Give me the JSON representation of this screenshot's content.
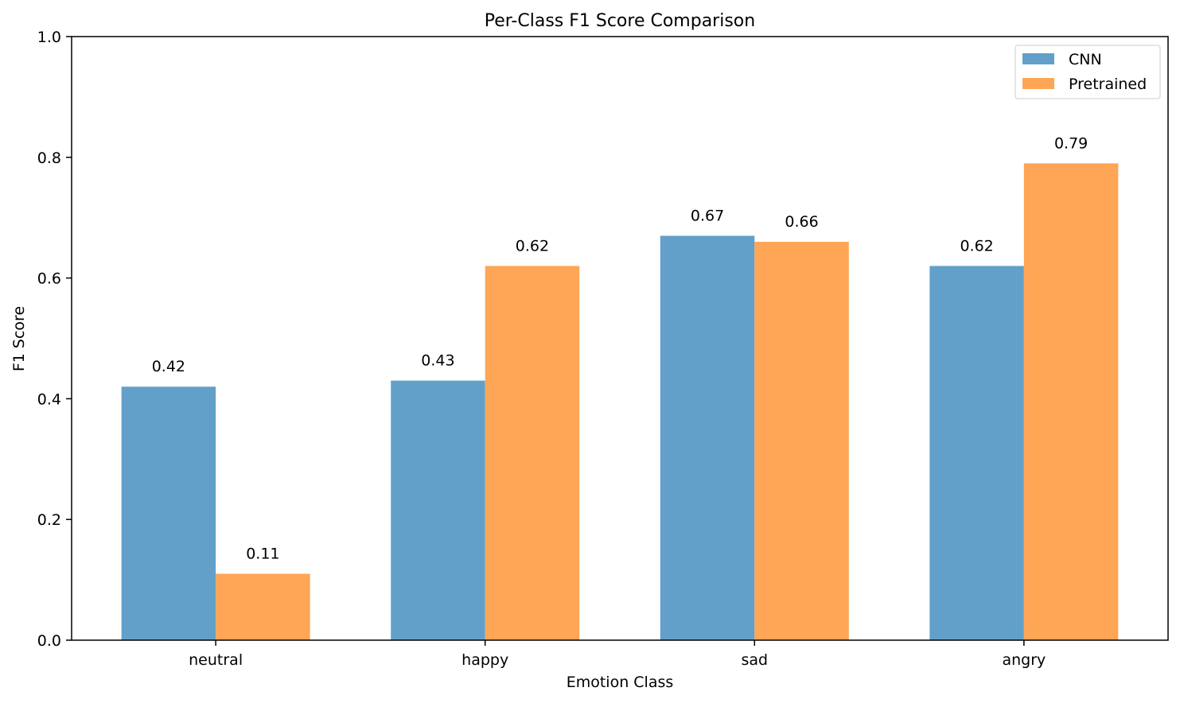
{
  "chart_data": {
    "type": "bar",
    "title": "Per-Class F1 Score Comparison",
    "xlabel": "Emotion Class",
    "ylabel": "F1 Score",
    "categories": [
      "neutral",
      "happy",
      "sad",
      "angry"
    ],
    "series": [
      {
        "name": "CNN",
        "values": [
          0.42,
          0.43,
          0.67,
          0.62
        ],
        "color": "#62a0ca"
      },
      {
        "name": "Pretrained",
        "values": [
          0.11,
          0.62,
          0.66,
          0.79
        ],
        "color": "#ffa556"
      }
    ],
    "data_labels": [
      [
        "0.42",
        "0.43",
        "0.67",
        "0.62"
      ],
      [
        "0.11",
        "0.62",
        "0.66",
        "0.79"
      ]
    ],
    "ylim": [
      0,
      1.0
    ],
    "yticks": [
      0.0,
      0.2,
      0.4,
      0.6,
      0.8,
      1.0
    ],
    "ytick_labels": [
      "0.0",
      "0.2",
      "0.4",
      "0.6",
      "0.8",
      "1.0"
    ],
    "grid": false,
    "legend_position": "top-right"
  }
}
